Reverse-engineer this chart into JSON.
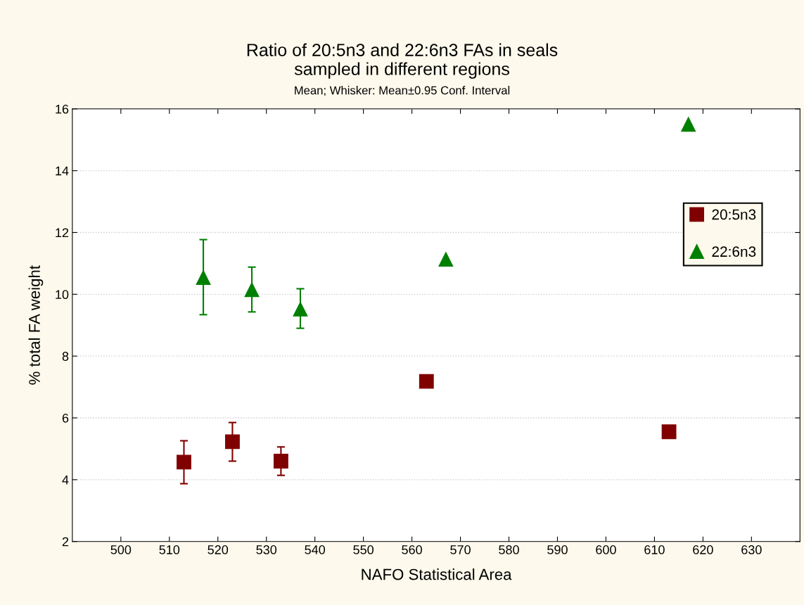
{
  "chart_data": {
    "type": "scatter",
    "title": "Ratio of 20:5n3 and 22:6n3 FAs in seals\nsampled in different regions",
    "subtitle": "Mean; Whisker: Mean±0.95 Conf. Interval",
    "xlabel": "NAFO Statistical Area",
    "ylabel": "% total FA weight",
    "xlim": [
      490,
      640
    ],
    "xticks": [
      500,
      510,
      520,
      530,
      540,
      550,
      560,
      570,
      580,
      590,
      600,
      610,
      620,
      630
    ],
    "ylim": [
      2,
      16
    ],
    "yticks": [
      2,
      4,
      6,
      8,
      10,
      12,
      14,
      16
    ],
    "grid": "y",
    "legend": "right",
    "series": [
      {
        "name": "20:5n3",
        "color": "#800000",
        "marker": "square",
        "x": [
          513,
          523,
          533,
          563,
          613
        ],
        "values": [
          4.57,
          5.23,
          4.6,
          7.18,
          5.55
        ],
        "errors": [
          [
            3.87,
            5.26
          ],
          [
            4.6,
            5.85
          ],
          [
            4.14,
            5.06
          ],
          null,
          null
        ]
      },
      {
        "name": "22:6n3",
        "color": "#008000",
        "marker": "triangle",
        "x": [
          517,
          527,
          537,
          567,
          617
        ],
        "values": [
          10.54,
          10.15,
          9.52,
          11.13,
          15.5
        ],
        "errors": [
          [
            9.34,
            11.77
          ],
          [
            9.43,
            10.88
          ],
          [
            8.9,
            10.18
          ],
          null,
          null
        ]
      }
    ]
  }
}
